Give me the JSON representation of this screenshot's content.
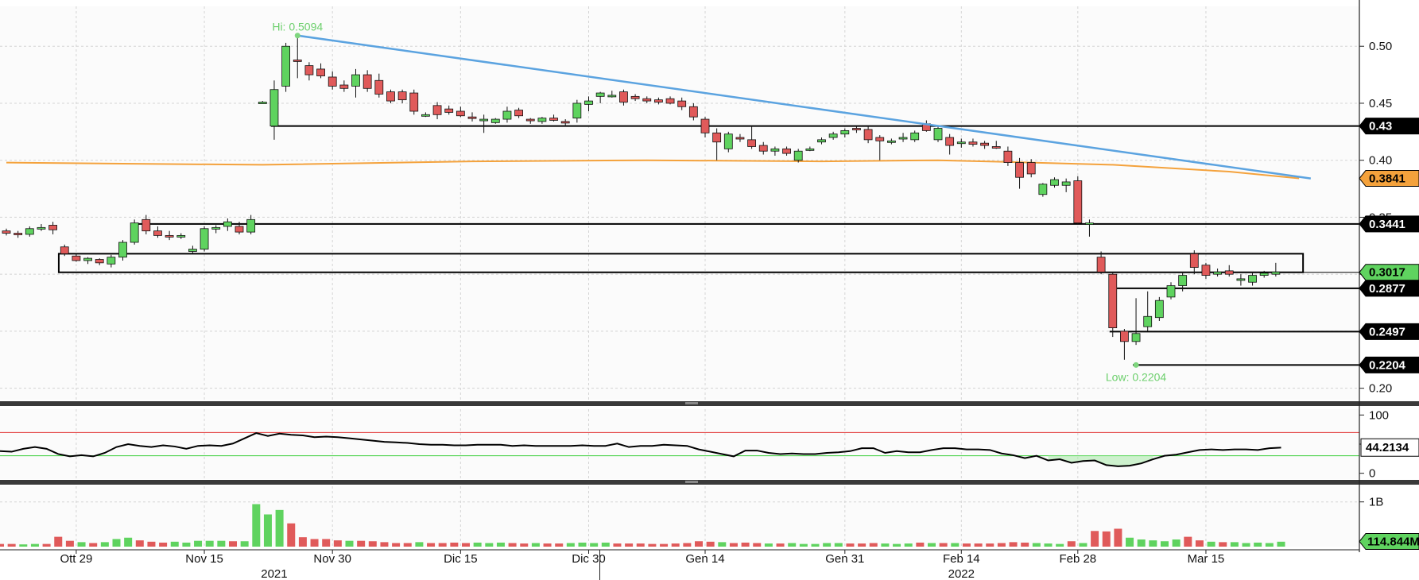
{
  "chart_data": [
    {
      "type": "candlestick",
      "panel": "price",
      "ylim": [
        0.19,
        0.535
      ],
      "y_ticks": [
        0.2,
        0.25,
        0.3,
        0.35,
        0.4,
        0.45,
        0.5
      ],
      "y_tick_labels": [
        "0.20",
        "0.25",
        "0.30",
        "0.35",
        "0.40",
        "0.45",
        "0.50"
      ],
      "grid": true,
      "x_tick_labels": [
        {
          "label": "Ott 29",
          "index": 6
        },
        {
          "label": "Nov 15",
          "index": 17
        },
        {
          "label": "Nov 30",
          "index": 28
        },
        {
          "label": "Dic 15",
          "index": 39
        },
        {
          "label": "Dic 30",
          "index": 50
        },
        {
          "label": "Gen 14",
          "index": 60
        },
        {
          "label": "Gen 31",
          "index": 72
        },
        {
          "label": "Feb 14",
          "index": 82
        },
        {
          "label": "Feb 28",
          "index": 92
        },
        {
          "label": "Mar 15",
          "index": 103
        }
      ],
      "year_labels": [
        {
          "label": "2021",
          "index": 23
        },
        {
          "label": "2022",
          "index": 82
        }
      ],
      "year_divider_index": 50,
      "candles": [
        [
          0.338,
          0.34,
          0.334,
          0.336
        ],
        [
          0.336,
          0.338,
          0.332,
          0.335
        ],
        [
          0.335,
          0.342,
          0.333,
          0.34
        ],
        [
          0.34,
          0.344,
          0.338,
          0.341
        ],
        [
          0.343,
          0.346,
          0.335,
          0.339
        ],
        [
          0.324,
          0.326,
          0.316,
          0.318
        ],
        [
          0.316,
          0.318,
          0.311,
          0.312
        ],
        [
          0.312,
          0.315,
          0.309,
          0.314
        ],
        [
          0.313,
          0.314,
          0.308,
          0.31
        ],
        [
          0.309,
          0.317,
          0.306,
          0.315
        ],
        [
          0.315,
          0.33,
          0.312,
          0.328
        ],
        [
          0.328,
          0.348,
          0.326,
          0.345
        ],
        [
          0.348,
          0.352,
          0.335,
          0.338
        ],
        [
          0.338,
          0.342,
          0.332,
          0.334
        ],
        [
          0.334,
          0.338,
          0.33,
          0.333
        ],
        [
          0.333,
          0.336,
          0.331,
          0.334
        ],
        [
          0.32,
          0.325,
          0.318,
          0.322
        ],
        [
          0.322,
          0.342,
          0.32,
          0.34
        ],
        [
          0.34,
          0.343,
          0.336,
          0.341
        ],
        [
          0.342,
          0.349,
          0.338,
          0.346
        ],
        [
          0.342,
          0.346,
          0.335,
          0.337
        ],
        [
          0.337,
          0.352,
          0.335,
          0.348
        ],
        [
          0.451,
          0.452,
          0.45,
          0.451
        ],
        [
          0.43,
          0.47,
          0.418,
          0.462
        ],
        [
          0.465,
          0.503,
          0.46,
          0.5
        ],
        [
          0.488,
          0.509,
          0.472,
          0.487
        ],
        [
          0.483,
          0.486,
          0.47,
          0.475
        ],
        [
          0.48,
          0.485,
          0.472,
          0.474
        ],
        [
          0.473,
          0.478,
          0.462,
          0.465
        ],
        [
          0.466,
          0.47,
          0.46,
          0.463
        ],
        [
          0.465,
          0.48,
          0.455,
          0.475
        ],
        [
          0.475,
          0.479,
          0.46,
          0.463
        ],
        [
          0.47,
          0.476,
          0.455,
          0.458
        ],
        [
          0.46,
          0.462,
          0.45,
          0.452
        ],
        [
          0.46,
          0.462,
          0.45,
          0.453
        ],
        [
          0.459,
          0.462,
          0.44,
          0.443
        ],
        [
          0.44,
          0.442,
          0.438,
          0.44
        ],
        [
          0.448,
          0.451,
          0.436,
          0.44
        ],
        [
          0.445,
          0.448,
          0.44,
          0.442
        ],
        [
          0.443,
          0.447,
          0.438,
          0.439
        ],
        [
          0.438,
          0.442,
          0.434,
          0.437
        ],
        [
          0.436,
          0.44,
          0.424,
          0.436
        ],
        [
          0.433,
          0.437,
          0.432,
          0.436
        ],
        [
          0.436,
          0.447,
          0.433,
          0.443
        ],
        [
          0.444,
          0.446,
          0.437,
          0.439
        ],
        [
          0.436,
          0.437,
          0.432,
          0.435
        ],
        [
          0.434,
          0.438,
          0.432,
          0.437
        ],
        [
          0.437,
          0.44,
          0.434,
          0.435
        ],
        [
          0.434,
          0.436,
          0.43,
          0.433
        ],
        [
          0.437,
          0.453,
          0.433,
          0.45
        ],
        [
          0.449,
          0.456,
          0.443,
          0.452
        ],
        [
          0.456,
          0.46,
          0.45,
          0.459
        ],
        [
          0.456,
          0.461,
          0.455,
          0.457
        ],
        [
          0.46,
          0.462,
          0.448,
          0.451
        ],
        [
          0.456,
          0.458,
          0.452,
          0.454
        ],
        [
          0.454,
          0.456,
          0.45,
          0.452
        ],
        [
          0.453,
          0.455,
          0.449,
          0.451
        ],
        [
          0.454,
          0.456,
          0.449,
          0.45
        ],
        [
          0.452,
          0.455,
          0.444,
          0.447
        ],
        [
          0.447,
          0.45,
          0.435,
          0.438
        ],
        [
          0.436,
          0.438,
          0.42,
          0.424
        ],
        [
          0.424,
          0.428,
          0.4,
          0.416
        ],
        [
          0.41,
          0.425,
          0.407,
          0.423
        ],
        [
          0.42,
          0.423,
          0.416,
          0.419
        ],
        [
          0.418,
          0.43,
          0.41,
          0.412
        ],
        [
          0.413,
          0.416,
          0.405,
          0.408
        ],
        [
          0.408,
          0.412,
          0.404,
          0.41
        ],
        [
          0.41,
          0.412,
          0.404,
          0.406
        ],
        [
          0.4,
          0.41,
          0.398,
          0.408
        ],
        [
          0.41,
          0.412,
          0.408,
          0.41
        ],
        [
          0.416,
          0.42,
          0.414,
          0.418
        ],
        [
          0.42,
          0.425,
          0.418,
          0.423
        ],
        [
          0.423,
          0.428,
          0.42,
          0.426
        ],
        [
          0.428,
          0.43,
          0.424,
          0.427
        ],
        [
          0.427,
          0.43,
          0.415,
          0.418
        ],
        [
          0.42,
          0.422,
          0.4,
          0.417
        ],
        [
          0.417,
          0.419,
          0.414,
          0.417
        ],
        [
          0.42,
          0.424,
          0.416,
          0.42
        ],
        [
          0.418,
          0.426,
          0.416,
          0.424
        ],
        [
          0.432,
          0.435,
          0.425,
          0.426
        ],
        [
          0.418,
          0.43,
          0.416,
          0.428
        ],
        [
          0.42,
          0.423,
          0.405,
          0.413
        ],
        [
          0.415,
          0.419,
          0.411,
          0.416
        ],
        [
          0.416,
          0.419,
          0.412,
          0.414
        ],
        [
          0.415,
          0.417,
          0.41,
          0.413
        ],
        [
          0.412,
          0.417,
          0.41,
          0.411
        ],
        [
          0.408,
          0.412,
          0.395,
          0.398
        ],
        [
          0.398,
          0.402,
          0.375,
          0.385
        ],
        [
          0.398,
          0.401,
          0.385,
          0.388
        ],
        [
          0.37,
          0.38,
          0.368,
          0.379
        ],
        [
          0.378,
          0.385,
          0.376,
          0.383
        ],
        [
          0.378,
          0.384,
          0.372,
          0.381
        ],
        [
          0.382,
          0.386,
          0.344,
          0.345
        ],
        [
          0.344,
          0.348,
          0.333,
          0.345
        ],
        [
          0.315,
          0.32,
          0.3,
          0.302
        ],
        [
          0.3,
          0.302,
          0.245,
          0.253
        ],
        [
          0.25,
          0.252,
          0.225,
          0.241
        ],
        [
          0.241,
          0.279,
          0.238,
          0.248
        ],
        [
          0.254,
          0.285,
          0.25,
          0.263
        ],
        [
          0.262,
          0.28,
          0.259,
          0.277
        ],
        [
          0.28,
          0.293,
          0.278,
          0.29
        ],
        [
          0.29,
          0.302,
          0.285,
          0.299
        ],
        [
          0.318,
          0.321,
          0.3,
          0.306
        ],
        [
          0.308,
          0.31,
          0.296,
          0.299
        ],
        [
          0.3,
          0.305,
          0.298,
          0.302
        ],
        [
          0.303,
          0.308,
          0.298,
          0.3
        ],
        [
          0.295,
          0.3,
          0.29,
          0.296
        ],
        [
          0.293,
          0.302,
          0.29,
          0.299
        ],
        [
          0.299,
          0.303,
          0.297,
          0.301
        ],
        [
          0.3,
          0.31,
          0.298,
          0.302
        ]
      ],
      "moving_average": {
        "color": "#f4a23c",
        "start": 0.398,
        "end": 0.3841,
        "points": [
          [
            0,
            0.398
          ],
          [
            10,
            0.397
          ],
          [
            22,
            0.396
          ],
          [
            40,
            0.399
          ],
          [
            55,
            0.4
          ],
          [
            70,
            0.399
          ],
          [
            80,
            0.4
          ],
          [
            88,
            0.398
          ],
          [
            95,
            0.396
          ],
          [
            105,
            0.39
          ],
          [
            111,
            0.3841
          ]
        ]
      },
      "trendline": {
        "color": "#5ba3e0",
        "from": [
          25,
          0.5094
        ],
        "to": [
          112,
          0.384
        ]
      },
      "horizontal_levels": [
        {
          "value": 0.43,
          "from": 23
        },
        {
          "value": 0.3441,
          "from": 11
        },
        {
          "value": 0.2877,
          "from": 95
        },
        {
          "value": 0.2497,
          "from": 95
        },
        {
          "value": 0.2204,
          "from": 97
        }
      ],
      "boxes": [
        {
          "from": 4.5,
          "to": 111,
          "y_low": 0.3017,
          "y_high": 0.318
        }
      ],
      "price_tags": [
        {
          "text": "0.43",
          "value": 0.43,
          "bg": "#000000",
          "fg": "#ffffff"
        },
        {
          "text": "0.3841",
          "value": 0.3841,
          "bg": "#f4a23c",
          "fg": "#000000"
        },
        {
          "text": "0.3441",
          "value": 0.3441,
          "bg": "#000000",
          "fg": "#ffffff"
        },
        {
          "text": "0.3017",
          "value": 0.3017,
          "bg": "#5fd35f",
          "fg": "#000000"
        },
        {
          "text": "0.2877",
          "value": 0.2877,
          "bg": "#000000",
          "fg": "#ffffff"
        },
        {
          "text": "0.2497",
          "value": 0.2497,
          "bg": "#000000",
          "fg": "#ffffff"
        },
        {
          "text": "0.2204",
          "value": 0.2204,
          "bg": "#000000",
          "fg": "#ffffff"
        }
      ],
      "annotations": [
        {
          "text": "Hi: 0.5094",
          "index": 25,
          "value": 0.5094
        },
        {
          "text": "Low: 0.2204",
          "index": 97,
          "value": 0.2204
        }
      ],
      "colors": {
        "up": "#5fd35f",
        "down": "#e05a5a"
      }
    },
    {
      "type": "line",
      "panel": "rsi",
      "ylim": [
        -10,
        110
      ],
      "y_ticks": [
        0,
        50,
        100
      ],
      "y_tick_labels": [
        "0",
        "50",
        "100"
      ],
      "upper_band": 70,
      "lower_band": 30,
      "last_value_text": "44.2134",
      "last_value": 44.2134,
      "values": [
        38,
        37,
        42,
        45,
        42,
        33,
        29,
        31,
        29,
        35,
        45,
        50,
        47,
        45,
        48,
        46,
        42,
        47,
        48,
        47,
        51,
        60,
        69,
        64,
        68,
        66,
        65,
        62,
        63,
        62,
        60,
        58,
        56,
        54,
        53,
        52,
        50,
        49,
        49,
        48,
        48,
        49,
        49,
        49,
        47,
        48,
        47,
        47,
        47,
        47,
        48,
        47,
        47,
        51,
        45,
        47,
        47,
        49,
        48,
        47,
        41,
        37,
        33,
        29,
        39,
        39,
        35,
        33,
        34,
        33,
        33,
        35,
        36,
        38,
        43,
        43,
        35,
        38,
        36,
        36,
        40,
        43,
        43,
        41,
        41,
        40,
        34,
        31,
        26,
        30,
        22,
        24,
        18,
        21,
        22,
        14,
        12,
        13,
        17,
        24,
        30,
        32,
        36,
        40,
        41,
        40,
        41,
        41,
        40,
        43,
        44
      ]
    },
    {
      "type": "bar",
      "panel": "volume",
      "ylim": [
        0,
        1.35
      ],
      "y_ticks": [
        1.0
      ],
      "y_tick_labels": [
        "1B"
      ],
      "unit": "B",
      "last_value_text": "114.844M",
      "last_value": 0.1148,
      "values": [
        0.06,
        0.06,
        0.05,
        0.06,
        0.06,
        0.22,
        0.13,
        0.1,
        0.08,
        0.1,
        0.17,
        0.2,
        0.14,
        0.11,
        0.09,
        0.11,
        0.09,
        0.13,
        0.13,
        0.13,
        0.12,
        0.12,
        0.95,
        0.72,
        0.82,
        0.52,
        0.21,
        0.17,
        0.17,
        0.14,
        0.13,
        0.13,
        0.12,
        0.1,
        0.08,
        0.08,
        0.1,
        0.08,
        0.08,
        0.09,
        0.08,
        0.09,
        0.08,
        0.09,
        0.08,
        0.07,
        0.08,
        0.07,
        0.07,
        0.08,
        0.09,
        0.08,
        0.09,
        0.07,
        0.07,
        0.07,
        0.06,
        0.06,
        0.07,
        0.08,
        0.12,
        0.11,
        0.1,
        0.08,
        0.09,
        0.08,
        0.07,
        0.07,
        0.08,
        0.06,
        0.06,
        0.08,
        0.08,
        0.07,
        0.07,
        0.08,
        0.07,
        0.06,
        0.07,
        0.09,
        0.08,
        0.08,
        0.08,
        0.07,
        0.07,
        0.07,
        0.08,
        0.1,
        0.09,
        0.08,
        0.07,
        0.06,
        0.12,
        0.08,
        0.35,
        0.34,
        0.4,
        0.2,
        0.16,
        0.14,
        0.12,
        0.16,
        0.22,
        0.14,
        0.11,
        0.1,
        0.1,
        0.08,
        0.09,
        0.08,
        0.11
      ]
    }
  ]
}
